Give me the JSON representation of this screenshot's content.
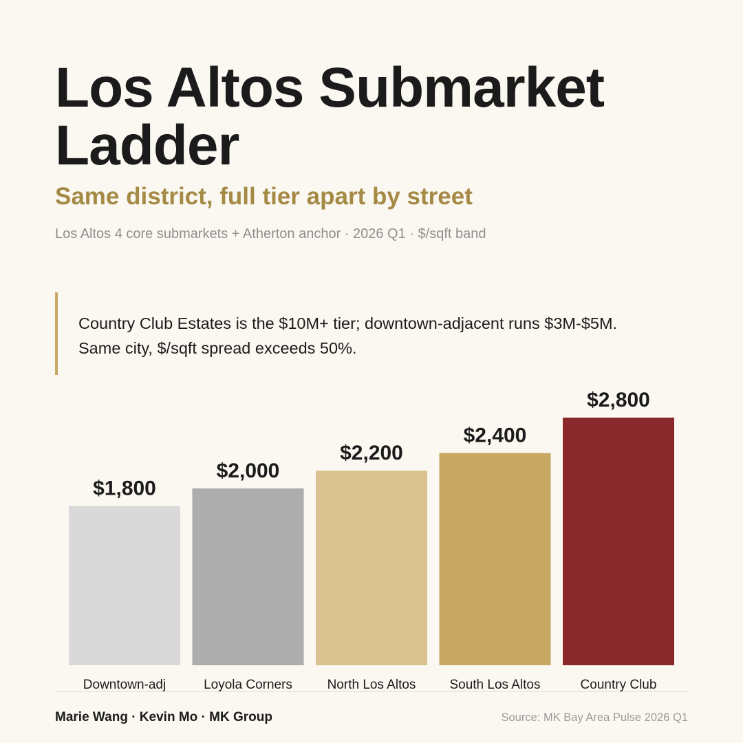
{
  "header": {
    "title": "Los Altos Submarket Ladder",
    "subtitle": "Same district, full tier apart by street",
    "meta": "Los Altos 4 core submarkets + Atherton anchor · 2026 Q1 · $/sqft band"
  },
  "callout": {
    "text": "Country Club Estates is the $10M+ tier; downtown-adjacent runs $3M-$5M. Same city, $/sqft spread exceeds 50%."
  },
  "chart_data": {
    "type": "bar",
    "categories": [
      "Downtown-adj",
      "Loyola Corners",
      "North Los Altos",
      "South Los Altos",
      "Country Club"
    ],
    "values": [
      1800,
      2000,
      2200,
      2400,
      2800
    ],
    "value_labels": [
      "$1,800",
      "$2,000",
      "$2,200",
      "$2,400",
      "$2,800"
    ],
    "colors": [
      "#d9d9d9",
      "#adadad",
      "#dbc291",
      "#c9a765",
      "#8a292c"
    ],
    "ylim": [
      0,
      2800
    ],
    "grid": false,
    "legend": "none"
  },
  "footer": {
    "authors": "Marie Wang · Kevin Mo · MK Group",
    "source": "Source: MK Bay Area Pulse 2026 Q1"
  }
}
